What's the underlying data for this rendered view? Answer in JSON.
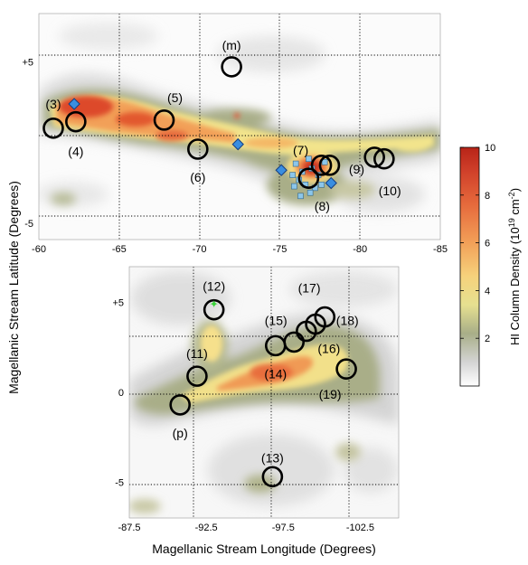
{
  "chart_data": {
    "type": "heatmap",
    "xlabel": "Magellanic Stream Longitude (Degrees)",
    "ylabel": "Magellanic Stream Latitude (Degrees)",
    "colorbar": {
      "label_main": "HI Column Density (10",
      "label_sup": "19",
      "label_unit": " cm",
      "label_unit_sup": "-2",
      "label_close": ")",
      "ticks": [
        2,
        4,
        6,
        8,
        10
      ],
      "range": [
        0,
        10
      ],
      "colors": [
        "#ffffff",
        "#c8c8c8",
        "#a8ae88",
        "#f4e890",
        "#f8c070",
        "#ee8248",
        "#dd4a2c",
        "#c02a1a"
      ]
    },
    "panels": [
      {
        "id": "top",
        "xlim": [
          -60,
          -85
        ],
        "ylim": [
          -6,
          8
        ],
        "x_ticks": [
          -60,
          -65,
          -70,
          -75,
          -80,
          -85
        ],
        "x_tick_labels": [
          "-60",
          "-65",
          "-70",
          "-75",
          "-80",
          "-85"
        ],
        "y_ticks": [
          5,
          -5
        ],
        "y_tick_labels": [
          "+5",
          "-5"
        ],
        "grid": "dotted",
        "circles": [
          {
            "label": "(m)",
            "x": -72.0,
            "y": 4.7
          },
          {
            "label": "(3)",
            "x": -60.9,
            "y": 0.9
          },
          {
            "label": "(4)",
            "x": -62.3,
            "y": 1.3
          },
          {
            "label": "(5)",
            "x": -67.8,
            "y": 1.4
          },
          {
            "label": "(6)",
            "x": -69.9,
            "y": -0.4
          },
          {
            "label": "(7)",
            "x": -77.6,
            "y": -1.4
          },
          {
            "label": "(8)",
            "x": -76.8,
            "y": -2.2
          },
          {
            "label": "(9)",
            "x": -78.1,
            "y": -1.4
          },
          {
            "label": "(10)",
            "x": -80.9,
            "y": -0.9
          },
          {
            "label": "",
            "x": -81.5,
            "y": -1.0
          }
        ],
        "diamonds": [
          {
            "x": -62.2,
            "y": 2.4
          },
          {
            "x": -72.4,
            "y": -0.1
          },
          {
            "x": -75.1,
            "y": -1.7
          },
          {
            "x": -78.2,
            "y": -2.5
          }
        ]
      },
      {
        "id": "bottom",
        "xlim": [
          -87.5,
          -105
        ],
        "ylim": [
          -7,
          7
        ],
        "x_ticks": [
          -87.5,
          -92.5,
          -97.5,
          -102.5
        ],
        "x_tick_labels": [
          "-87.5",
          "-92.5",
          "-97.5",
          "-102.5"
        ],
        "y_ticks": [
          5,
          0,
          -5
        ],
        "y_tick_labels": [
          "+5",
          "0",
          "-5"
        ],
        "grid": "dotted",
        "circles": [
          {
            "label": "(12)",
            "x": -93.0,
            "y": 4.6
          },
          {
            "label": "(11)",
            "x": -91.9,
            "y": 0.9
          },
          {
            "label": "(p)",
            "x": -90.8,
            "y": -0.7
          },
          {
            "label": "(13)",
            "x": -96.8,
            "y": -4.7
          },
          {
            "label": "(14)",
            "x": -97.0,
            "y": 2.6
          },
          {
            "label": "(15)",
            "x": -98.2,
            "y": 2.8
          },
          {
            "label": "(16)",
            "x": -99.0,
            "y": 3.4
          },
          {
            "label": "(17)",
            "x": -99.6,
            "y": 3.8
          },
          {
            "label": "(18)",
            "x": -100.2,
            "y": 4.2
          },
          {
            "label": "(19)",
            "x": -101.6,
            "y": 1.3
          }
        ],
        "stars": [
          {
            "x": -93.0,
            "y": 4.9
          }
        ]
      }
    ]
  }
}
